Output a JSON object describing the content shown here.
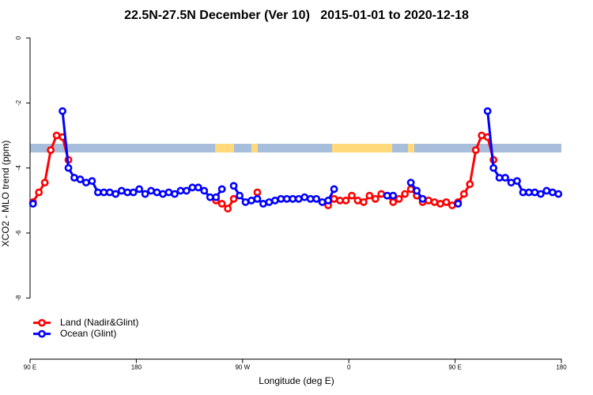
{
  "chart_data": {
    "type": "line",
    "title": "22.5N-27.5N December (Ver 10)   2015-01-01 to 2020-12-18",
    "xlabel": "Longitude (deg E)",
    "ylabel": "XCO2 - MLO trend (ppm)",
    "xlim": [
      90,
      540
    ],
    "xticks": [
      {
        "value": 90,
        "label": "90 E"
      },
      {
        "value": 180,
        "label": "180"
      },
      {
        "value": 270,
        "label": "90 W"
      },
      {
        "value": 360,
        "label": "0"
      },
      {
        "value": 450,
        "label": "90 E"
      },
      {
        "value": 540,
        "label": "180"
      }
    ],
    "ylim": [
      -9.88,
      0.38
    ],
    "yticks": [
      0,
      -2,
      -4,
      -6,
      -8
    ],
    "legend": "bottomleft",
    "x": [
      92.5,
      97.5,
      102.5,
      107.5,
      112.5,
      117.5,
      122.5,
      127.5,
      132.5,
      137.5,
      142.5,
      147.5,
      152.5,
      157.5,
      162.5,
      167.5,
      172.5,
      177.5,
      182.5,
      187.5,
      192.5,
      197.5,
      202.5,
      207.5,
      212.5,
      217.5,
      222.5,
      227.5,
      232.5,
      237.5,
      242.5,
      247.5,
      252.5,
      257.5,
      262.5,
      267.5,
      272.5,
      277.5,
      282.5,
      287.5,
      292.5,
      297.5,
      302.5,
      307.5,
      312.5,
      317.5,
      322.5,
      327.5,
      332.5,
      337.5,
      342.5,
      347.5,
      352.5,
      357.5,
      362.5,
      367.5,
      372.5,
      377.5,
      382.5,
      387.5,
      392.5,
      397.5,
      402.5,
      407.5,
      412.5,
      417.5,
      422.5,
      427.5,
      432.5,
      437.5,
      442.5,
      447.5,
      452.5,
      457.5,
      462.5,
      467.5,
      472.5,
      477.5,
      482.5,
      487.5,
      492.5,
      497.5,
      502.5,
      507.5,
      512.5,
      517.5,
      522.5,
      527.5,
      532.5,
      537.5
    ],
    "series": [
      {
        "name": "Land (Nadir&Glint)",
        "color": "#ff0000",
        "values": [
          -5.05,
          -4.75,
          -4.45,
          -3.45,
          -3.0,
          -3.05,
          -3.75,
          null,
          null,
          null,
          null,
          null,
          null,
          null,
          null,
          null,
          null,
          null,
          null,
          null,
          null,
          null,
          null,
          null,
          null,
          null,
          null,
          null,
          null,
          null,
          null,
          -5.0,
          -5.1,
          -5.25,
          -4.95,
          null,
          null,
          null,
          -4.75,
          null,
          null,
          null,
          null,
          null,
          null,
          null,
          null,
          null,
          null,
          null,
          -5.15,
          -4.95,
          -5.0,
          -5.0,
          -4.85,
          -5.0,
          -5.05,
          -4.85,
          -4.95,
          -4.8,
          -4.85,
          -5.05,
          -4.95,
          -4.8,
          -4.65,
          -4.85,
          -5.05,
          -5.0,
          -5.05,
          -5.1,
          -5.05,
          -5.15,
          -5.05,
          -4.8,
          -4.5,
          -3.45,
          -3.0,
          -3.05,
          -3.75,
          null,
          null,
          null,
          null,
          null,
          null,
          null,
          null,
          null,
          null,
          null
        ]
      },
      {
        "name": "Ocean (Glint)",
        "color": "#0000ff",
        "values": [
          -5.1,
          null,
          null,
          null,
          null,
          -2.25,
          -4.0,
          -4.3,
          -4.35,
          -4.45,
          -4.4,
          -4.75,
          -4.75,
          -4.75,
          -4.8,
          -4.7,
          -4.75,
          -4.75,
          -4.65,
          -4.8,
          -4.7,
          -4.75,
          -4.8,
          -4.75,
          -4.8,
          -4.7,
          -4.7,
          -4.6,
          -4.6,
          -4.7,
          -4.9,
          -4.9,
          -4.65,
          null,
          -4.55,
          -4.85,
          -5.05,
          -5.0,
          -4.95,
          -5.1,
          -5.05,
          -5.0,
          -4.95,
          -4.95,
          -4.95,
          -4.95,
          -4.9,
          -4.95,
          -4.95,
          -5.05,
          -5.0,
          -4.65,
          null,
          null,
          null,
          null,
          null,
          null,
          null,
          null,
          -4.85,
          -4.85,
          null,
          null,
          -4.45,
          -4.7,
          -4.95,
          null,
          null,
          null,
          null,
          null,
          -5.1,
          null,
          null,
          null,
          null,
          -2.25,
          -4.0,
          -4.3,
          -4.3,
          -4.45,
          -4.4,
          -4.75,
          -4.75,
          -4.75,
          -4.8,
          -4.7,
          -4.75,
          -4.8
        ]
      }
    ]
  }
}
